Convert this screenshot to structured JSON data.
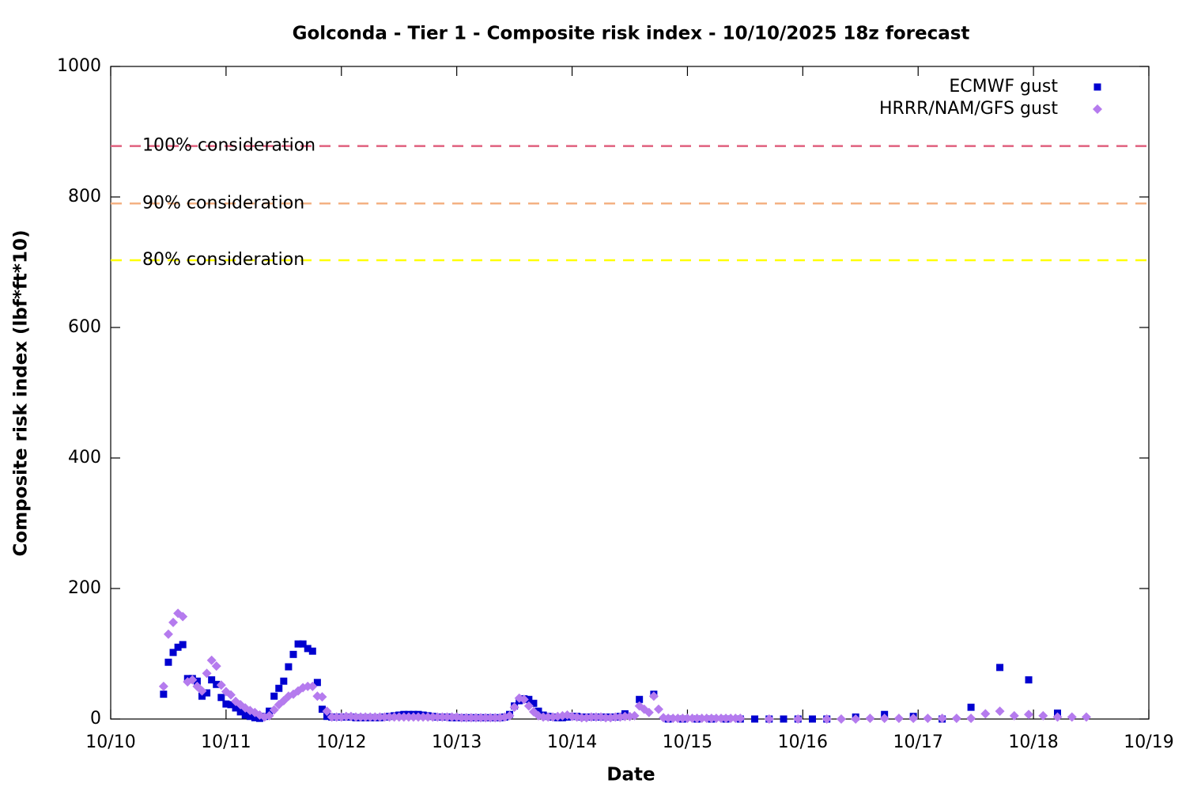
{
  "chart_data": {
    "type": "scatter",
    "title": "Golconda - Tier 1 - Composite risk index - 10/10/2025 18z forecast",
    "x_label": "Date",
    "y_label": "Composite risk index (lbf*ft*10)",
    "xlim": [
      0,
      216
    ],
    "xticks": [
      {
        "value": 0,
        "label": "10/10"
      },
      {
        "value": 24,
        "label": "10/11"
      },
      {
        "value": 48,
        "label": "10/12"
      },
      {
        "value": 72,
        "label": "10/13"
      },
      {
        "value": 96,
        "label": "10/14"
      },
      {
        "value": 120,
        "label": "10/15"
      },
      {
        "value": 144,
        "label": "10/16"
      },
      {
        "value": 168,
        "label": "10/17"
      },
      {
        "value": 192,
        "label": "10/18"
      },
      {
        "value": 216,
        "label": "10/19"
      }
    ],
    "ylim": [
      0,
      1000
    ],
    "yticks": [
      0,
      200,
      400,
      600,
      800,
      1000
    ],
    "legend": "top-right",
    "thresholds": [
      {
        "label": "100% consideration",
        "value": 878,
        "color": "#e0607e"
      },
      {
        "label": "90% consideration",
        "value": 790,
        "color": "#f4b183"
      },
      {
        "label": "80% consideration",
        "value": 703,
        "color": "#ffff00"
      }
    ],
    "series": [
      {
        "name": "ECMWF gust",
        "color": "#0000d0",
        "marker": "square",
        "x": [
          11,
          12,
          13,
          14,
          15,
          16,
          17,
          18,
          19,
          20,
          21,
          22,
          23,
          24,
          25,
          26,
          27,
          28,
          29,
          30,
          31,
          32,
          33,
          34,
          35,
          36,
          37,
          38,
          39,
          40,
          41,
          42,
          43,
          44,
          45,
          46,
          47,
          48,
          49,
          50,
          51,
          52,
          53,
          54,
          55,
          56,
          57,
          58,
          59,
          60,
          61,
          62,
          63,
          64,
          65,
          66,
          67,
          68,
          69,
          70,
          71,
          72,
          73,
          74,
          75,
          76,
          77,
          78,
          79,
          80,
          81,
          82,
          83,
          84,
          85,
          86,
          87,
          88,
          89,
          90,
          91,
          92,
          93,
          94,
          95,
          96,
          97,
          98,
          99,
          100,
          101,
          102,
          103,
          104,
          105,
          106,
          107,
          110,
          113,
          116,
          119,
          122,
          125,
          128,
          131,
          134,
          137,
          140,
          143,
          146,
          149,
          155,
          161,
          167,
          173,
          179,
          185,
          191,
          197
        ],
        "values": [
          38,
          87,
          102,
          110,
          114,
          62,
          62,
          58,
          35,
          40,
          60,
          53,
          33,
          23,
          22,
          17,
          11,
          6,
          4,
          2,
          1,
          4,
          12,
          35,
          47,
          58,
          80,
          99,
          115,
          115,
          108,
          104,
          56,
          15,
          4,
          3,
          3,
          3,
          3,
          3,
          2,
          2,
          2,
          2,
          2,
          2,
          3,
          4,
          5,
          6,
          7,
          7,
          7,
          7,
          6,
          5,
          4,
          3,
          3,
          3,
          2,
          2,
          2,
          2,
          2,
          2,
          2,
          2,
          2,
          2,
          2,
          3,
          7,
          20,
          28,
          31,
          30,
          24,
          12,
          6,
          4,
          3,
          2,
          2,
          3,
          4,
          4,
          3,
          3,
          3,
          3,
          3,
          3,
          3,
          3,
          4,
          8,
          30,
          38,
          0,
          0,
          0,
          0,
          0,
          0,
          0,
          0,
          0,
          0,
          0,
          0,
          3,
          7,
          4,
          0,
          18,
          79,
          60,
          9
        ]
      },
      {
        "name": "HRRR/NAM/GFS gust",
        "color": "#b57bee",
        "marker": "diamond",
        "x": [
          11,
          12,
          13,
          14,
          15,
          16,
          17,
          18,
          19,
          20,
          21,
          22,
          23,
          24,
          25,
          26,
          27,
          28,
          29,
          30,
          31,
          32,
          33,
          34,
          35,
          36,
          37,
          38,
          39,
          40,
          41,
          42,
          43,
          44,
          45,
          46,
          47,
          48,
          49,
          50,
          51,
          52,
          53,
          54,
          55,
          56,
          57,
          58,
          59,
          60,
          61,
          62,
          63,
          64,
          65,
          66,
          67,
          68,
          69,
          70,
          71,
          72,
          73,
          74,
          75,
          76,
          77,
          78,
          79,
          80,
          81,
          82,
          83,
          84,
          85,
          86,
          87,
          88,
          89,
          90,
          91,
          92,
          93,
          94,
          95,
          96,
          97,
          98,
          99,
          100,
          101,
          102,
          103,
          104,
          105,
          106,
          107,
          108,
          109,
          110,
          111,
          112,
          113,
          114,
          115,
          116,
          117,
          118,
          119,
          120,
          121,
          122,
          123,
          124,
          125,
          126,
          127,
          128,
          129,
          130,
          131,
          137,
          143,
          149,
          152,
          155,
          158,
          161,
          164,
          167,
          170,
          173,
          176,
          179,
          182,
          185,
          188,
          191,
          194,
          197,
          200,
          203
        ],
        "values": [
          50,
          130,
          148,
          162,
          157,
          57,
          60,
          50,
          43,
          70,
          90,
          81,
          52,
          42,
          37,
          27,
          22,
          17,
          13,
          10,
          6,
          3,
          5,
          14,
          22,
          28,
          35,
          38,
          43,
          48,
          50,
          50,
          35,
          34,
          12,
          3,
          3,
          3,
          4,
          4,
          3,
          3,
          3,
          3,
          3,
          3,
          3,
          3,
          3,
          3,
          3,
          3,
          3,
          3,
          3,
          3,
          3,
          3,
          3,
          3,
          3,
          3,
          2,
          2,
          2,
          2,
          2,
          2,
          2,
          2,
          2,
          3,
          5,
          18,
          32,
          30,
          20,
          11,
          5,
          3,
          3,
          3,
          4,
          5,
          6,
          4,
          3,
          2,
          2,
          3,
          3,
          3,
          2,
          2,
          3,
          3,
          4,
          4,
          5,
          20,
          15,
          10,
          35,
          15,
          2,
          1,
          1,
          1,
          1,
          1,
          1,
          1,
          1,
          1,
          1,
          1,
          1,
          1,
          1,
          1,
          1,
          0,
          0,
          0,
          0,
          0,
          1,
          1,
          1,
          1,
          1,
          1,
          1,
          1,
          8,
          12,
          5,
          7,
          5,
          3,
          3,
          3
        ]
      }
    ]
  }
}
